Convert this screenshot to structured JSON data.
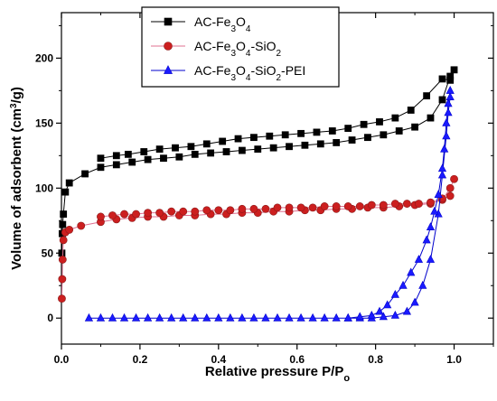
{
  "chart_data": {
    "type": "line",
    "xlabel": "Relative pressure P/P",
    "xlabel_sub": "o",
    "ylabel": "Volume of adsorbent (cm",
    "ylabel_sup": "3",
    "ylabel_end": "/g)",
    "xlim": [
      0.0,
      1.1
    ],
    "ylim": [
      -20,
      235
    ],
    "x_ticks": [
      "0.0",
      "0.2",
      "0.4",
      "0.6",
      "0.8",
      "1.0"
    ],
    "x_tick_values": [
      0.0,
      0.2,
      0.4,
      0.6,
      0.8,
      1.0
    ],
    "y_ticks": [
      "0",
      "50",
      "100",
      "150",
      "200"
    ],
    "y_tick_values": [
      0,
      50,
      100,
      150,
      200
    ],
    "grid": false,
    "legend_position": "top-center",
    "series": [
      {
        "name": "AC-Fe3O4",
        "legend": {
          "parts": [
            [
              "AC-Fe",
              ""
            ],
            [
              "3",
              "sub"
            ],
            [
              "O",
              ""
            ],
            [
              "4",
              "sub"
            ]
          ]
        },
        "marker": "square",
        "color": "#000000",
        "fill": "#000000",
        "adsorption": {
          "x": [
            0.001,
            0.002,
            0.003,
            0.005,
            0.01,
            0.02,
            0.06,
            0.1,
            0.14,
            0.18,
            0.22,
            0.26,
            0.3,
            0.34,
            0.38,
            0.42,
            0.46,
            0.5,
            0.54,
            0.58,
            0.62,
            0.66,
            0.7,
            0.74,
            0.78,
            0.82,
            0.86,
            0.9,
            0.94,
            0.97,
            0.99,
            1.0
          ],
          "y": [
            50,
            65,
            72,
            80,
            97,
            104,
            111,
            116,
            118,
            120,
            122,
            123,
            124,
            126,
            127,
            128,
            129,
            130,
            131,
            132,
            133,
            134,
            135,
            137,
            139,
            141,
            144,
            147,
            154,
            168,
            186,
            191
          ]
        },
        "desorption": {
          "x": [
            0.99,
            0.97,
            0.93,
            0.89,
            0.85,
            0.81,
            0.77,
            0.73,
            0.69,
            0.65,
            0.61,
            0.57,
            0.53,
            0.49,
            0.45,
            0.41,
            0.37,
            0.33,
            0.29,
            0.25,
            0.21,
            0.17,
            0.14,
            0.1
          ],
          "y": [
            183,
            184,
            171,
            160,
            154,
            151,
            149,
            146,
            144,
            143,
            142,
            141,
            140,
            139,
            138,
            136,
            134,
            132,
            131,
            130,
            128,
            126,
            125,
            123
          ]
        }
      },
      {
        "name": "AC-Fe3O4-SiO2",
        "legend": {
          "parts": [
            [
              "AC-Fe",
              ""
            ],
            [
              "3",
              "sub"
            ],
            [
              "O",
              ""
            ],
            [
              "4",
              "sub"
            ],
            [
              "-SiO",
              ""
            ],
            [
              "2",
              "sub"
            ]
          ]
        },
        "marker": "circle",
        "color": "#8b1a1a",
        "fill": "#cc1f1f",
        "line_color": "#e07090",
        "adsorption": {
          "x": [
            0.001,
            0.002,
            0.003,
            0.005,
            0.01,
            0.02,
            0.05,
            0.1,
            0.14,
            0.18,
            0.22,
            0.26,
            0.3,
            0.34,
            0.38,
            0.42,
            0.46,
            0.5,
            0.54,
            0.58,
            0.62,
            0.66,
            0.7,
            0.74,
            0.78,
            0.82,
            0.86,
            0.9,
            0.94,
            0.97,
            0.99,
            1.0
          ],
          "y": [
            15,
            30,
            45,
            60,
            66,
            68,
            71,
            74,
            76,
            77,
            78,
            78,
            79,
            79,
            80,
            80,
            81,
            81,
            82,
            82,
            83,
            83,
            84,
            84,
            85,
            85,
            86,
            87,
            88,
            91,
            100,
            107
          ]
        },
        "desorption": {
          "x": [
            0.99,
            0.97,
            0.94,
            0.91,
            0.88,
            0.85,
            0.82,
            0.79,
            0.76,
            0.73,
            0.7,
            0.67,
            0.64,
            0.61,
            0.58,
            0.55,
            0.52,
            0.49,
            0.46,
            0.43,
            0.4,
            0.37,
            0.34,
            0.31,
            0.28,
            0.25,
            0.22,
            0.19,
            0.16,
            0.13,
            0.1
          ],
          "y": [
            94,
            92,
            89,
            88,
            88,
            88,
            87,
            87,
            86,
            86,
            86,
            86,
            85,
            85,
            85,
            85,
            84,
            84,
            84,
            83,
            83,
            83,
            82,
            82,
            82,
            81,
            81,
            80,
            80,
            79,
            78
          ]
        }
      },
      {
        "name": "AC-Fe3O4-SiO2-PEI",
        "legend": {
          "parts": [
            [
              "AC-Fe",
              ""
            ],
            [
              "3",
              "sub"
            ],
            [
              "O",
              ""
            ],
            [
              "4",
              "sub"
            ],
            [
              "-SiO",
              ""
            ],
            [
              "2",
              "sub"
            ],
            [
              "-PEI",
              ""
            ]
          ]
        },
        "marker": "triangle",
        "color": "#0000cc",
        "fill": "#1a1aff",
        "adsorption": {
          "x": [
            0.07,
            0.1,
            0.13,
            0.16,
            0.19,
            0.22,
            0.25,
            0.28,
            0.31,
            0.34,
            0.37,
            0.4,
            0.43,
            0.46,
            0.49,
            0.52,
            0.55,
            0.58,
            0.61,
            0.64,
            0.67,
            0.7,
            0.73,
            0.76,
            0.79,
            0.82,
            0.85,
            0.88,
            0.9,
            0.92,
            0.94,
            0.96,
            0.97,
            0.98,
            0.985,
            0.99
          ],
          "y": [
            0,
            0,
            0,
            0,
            0,
            0,
            0,
            0,
            0,
            0,
            0,
            0,
            0,
            0,
            0,
            0,
            0,
            0,
            0,
            0,
            0,
            0,
            0,
            0,
            0,
            1,
            2,
            5,
            12,
            25,
            45,
            80,
            110,
            140,
            158,
            170
          ]
        },
        "desorption": {
          "x": [
            0.99,
            0.985,
            0.98,
            0.975,
            0.97,
            0.96,
            0.95,
            0.94,
            0.93,
            0.91,
            0.89,
            0.87,
            0.85,
            0.83,
            0.81,
            0.79,
            0.76,
            0.73
          ],
          "y": [
            175,
            165,
            150,
            130,
            115,
            95,
            82,
            70,
            60,
            45,
            35,
            25,
            18,
            10,
            5,
            2,
            1,
            0
          ]
        }
      }
    ]
  }
}
